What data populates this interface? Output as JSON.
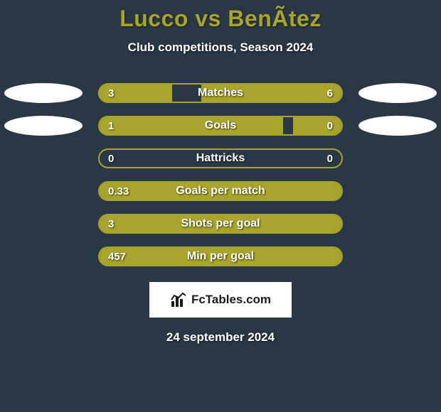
{
  "background_color": "#2a3845",
  "accent_color": "#a8a42d",
  "text_color": "#ffffff",
  "title": "Lucco vs BenÃ­tez",
  "title_color": "#a8a42d",
  "title_fontsize": 32,
  "subtitle": "Club competitions, Season 2024",
  "subtitle_fontsize": 17,
  "bar_track_width": 344,
  "bar_track_height": 28,
  "bar_border_color": "#a8a42d",
  "bar_fill_color": "#a8a42d",
  "bar_border_radius": 14,
  "row_gap": 18,
  "rows": [
    {
      "label": "Matches",
      "left_value": "3",
      "right_value": "6",
      "left_fill_pct": 30,
      "right_fill_pct": 58,
      "show_left_ellipse": true,
      "show_right_ellipse": true
    },
    {
      "label": "Goals",
      "left_value": "1",
      "right_value": "0",
      "left_fill_pct": 76,
      "right_fill_pct": 20,
      "show_left_ellipse": true,
      "show_right_ellipse": true
    },
    {
      "label": "Hattricks",
      "left_value": "0",
      "right_value": "0",
      "left_fill_pct": 0,
      "right_fill_pct": 0,
      "show_left_ellipse": false,
      "show_right_ellipse": false
    },
    {
      "label": "Goals per match",
      "left_value": "0.33",
      "right_value": "",
      "left_fill_pct": 100,
      "right_fill_pct": 0,
      "show_left_ellipse": false,
      "show_right_ellipse": false
    },
    {
      "label": "Shots per goal",
      "left_value": "3",
      "right_value": "",
      "left_fill_pct": 100,
      "right_fill_pct": 0,
      "show_left_ellipse": false,
      "show_right_ellipse": false
    },
    {
      "label": "Min per goal",
      "left_value": "457",
      "right_value": "",
      "left_fill_pct": 100,
      "right_fill_pct": 0,
      "show_left_ellipse": false,
      "show_right_ellipse": false
    }
  ],
  "ellipse_color": "#ffffff",
  "ellipse_width": 110,
  "ellipse_height": 28,
  "logo": {
    "text": "FcTables.com",
    "bg_color": "#ffffff",
    "text_color": "#1a1a1a",
    "icon_name": "bars-icon"
  },
  "date": "24 september 2024"
}
